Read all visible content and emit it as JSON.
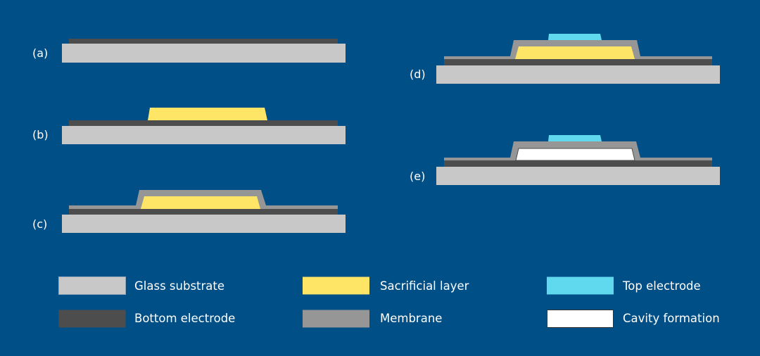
{
  "colors": {
    "background": "#014f87",
    "glass_substrate": "#c8c8c8",
    "bottom_electrode": "#4d4d4d",
    "sacrificial_layer": "#ffe566",
    "membrane": "#969696",
    "top_electrode": "#60d9ee",
    "cavity": "#ffffff"
  },
  "steps": [
    {
      "label": "(a)"
    },
    {
      "label": "(b)"
    },
    {
      "label": "(c)"
    },
    {
      "label": "(d)"
    },
    {
      "label": "(e)"
    }
  ],
  "legend": [
    {
      "label": "Glass substrate",
      "color_key": "glass_substrate"
    },
    {
      "label": "Bottom electrode",
      "color_key": "bottom_electrode"
    },
    {
      "label": "Sacrificial layer",
      "color_key": "sacrificial_layer"
    },
    {
      "label": "Membrane",
      "color_key": "membrane"
    },
    {
      "label": "Top electrode",
      "color_key": "top_electrode"
    },
    {
      "label": "Cavity formation",
      "color_key": "cavity"
    }
  ]
}
